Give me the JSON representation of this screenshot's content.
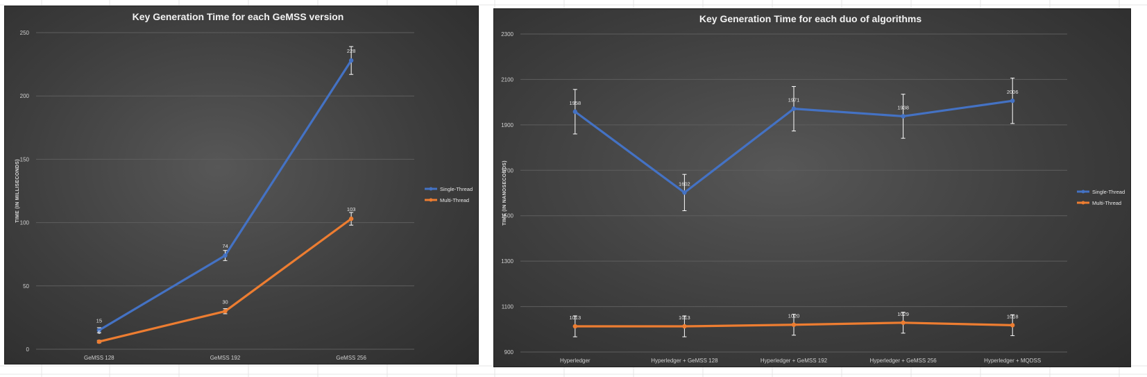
{
  "colors": {
    "single_thread": "#4472C4",
    "multi_thread": "#ED7D31",
    "gridline": "#5e5e5e",
    "error_bar": "#ffffff"
  },
  "chart_data": [
    {
      "type": "line",
      "title": "Key Generation Time for each GeMSS version",
      "xlabel": "",
      "ylabel": "TIME (IN MILLISECONDS)",
      "categories": [
        "GeMSS 128",
        "GeMSS 192",
        "GeMSS 256"
      ],
      "ylim": [
        0,
        250
      ],
      "yticks": [
        0,
        50,
        100,
        150,
        200,
        250
      ],
      "grid": true,
      "legend_position": "right",
      "series": [
        {
          "name": "Single-Thread",
          "values": [
            15,
            74,
            228
          ],
          "error": [
            2,
            4,
            11
          ],
          "labels": [
            "15",
            "74",
            "228"
          ]
        },
        {
          "name": "Multi-Thread",
          "values": [
            6,
            30,
            103
          ],
          "error": [
            1,
            2,
            5
          ],
          "labels": [
            "6",
            "30",
            "103"
          ]
        }
      ]
    },
    {
      "type": "line",
      "title": "Key Generation Time for each duo of algorithms",
      "xlabel": "",
      "ylabel": "TIME (IN NANOSECONDS)",
      "categories": [
        "Hyperledger",
        "Hyperledger + GeMSS 128",
        "Hyperledger + GeMSS 192",
        "Hyperledger + GeMSS 256",
        "Hyperledger + MQDSS"
      ],
      "ylim": [
        900,
        2300
      ],
      "yticks": [
        900,
        1100,
        1300,
        1500,
        1700,
        1900,
        2100,
        2300
      ],
      "grid": true,
      "legend_position": "right",
      "series": [
        {
          "name": "Single-Thread",
          "values": [
            1958,
            1602,
            1971,
            1938,
            2006
          ],
          "error": [
            98,
            80,
            98,
            97,
            100
          ],
          "labels": [
            "1958",
            "1602",
            "1971",
            "1938",
            "2006"
          ]
        },
        {
          "name": "Multi-Thread",
          "values": [
            1013,
            1013,
            1020,
            1029,
            1018
          ],
          "error": [
            46,
            46,
            46,
            46,
            46
          ],
          "labels": [
            "1013",
            "1013",
            "1020",
            "1029",
            "1018"
          ]
        }
      ]
    }
  ]
}
